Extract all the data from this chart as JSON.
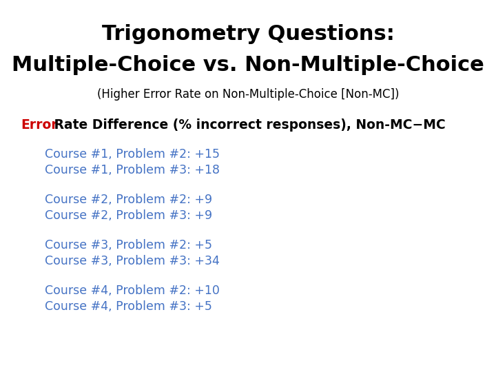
{
  "title_line1": "Trigonometry Questions:",
  "title_line2": "Multiple-Choice vs. Non-Multiple-Choice",
  "subtitle": "(Higher Error Rate on Non-Multiple-Choice [Non-MC])",
  "section_label_red": "Error",
  "section_label_black": " Rate Difference (% incorrect responses), Non-MC−MC",
  "data_lines": [
    "Course #1, Problem #2: +15",
    "Course #1, Problem #3: +18",
    "",
    "Course #2, Problem #2: +9",
    "Course #2, Problem #3: +9",
    "",
    "Course #3, Problem #2: +5",
    "Course #3, Problem #3: +34",
    "",
    "Course #4, Problem #2: +10",
    "Course #4, Problem #3: +5"
  ],
  "title_color": "#000000",
  "subtitle_color": "#000000",
  "section_label_red_color": "#cc0000",
  "section_label_black_color": "#000000",
  "data_text_color": "#4472c4",
  "background_color": "#ffffff",
  "title_fontsize": 22,
  "subtitle_fontsize": 12,
  "section_label_fontsize": 13.5,
  "data_fontsize": 12.5
}
